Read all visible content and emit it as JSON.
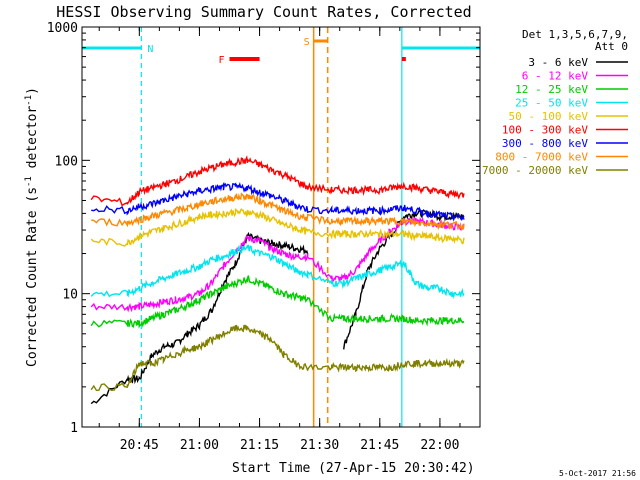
{
  "chart_data": {
    "type": "line",
    "title": "HESSI Observing Summary Count Rates, Corrected",
    "xlabel": "Start Time (27-Apr-15 20:30:42)",
    "ylabel": "Corrected Count Rate (s",
    "ylabel_sup1": "-1",
    "ylabel_mid": " detector",
    "ylabel_sup2": "-1",
    "ylabel_end": ")",
    "footer": "5-Oct-2017 21:56",
    "xlim": [
      "20:30:42",
      "22:10:00"
    ],
    "y_scale": "log",
    "ylim": [
      1,
      1000
    ],
    "x_ticks": [
      "20:45",
      "21:00",
      "21:15",
      "21:30",
      "21:45",
      "22:00"
    ],
    "y_ticks": [
      "1",
      "10",
      "100",
      "1000"
    ],
    "legend": {
      "placement": "right",
      "header1": "Det 1,3,5,6,7,9,",
      "header2": "Att 0",
      "entries": [
        {
          "label": "3 - 6 keV",
          "color": "#000000"
        },
        {
          "label": "6 - 12 keV",
          "color": "#ff00ff"
        },
        {
          "label": "12 - 25 keV",
          "color": "#00cc00"
        },
        {
          "label": "25 - 50 keV",
          "color": "#00e5ee"
        },
        {
          "label": "50 - 100 keV",
          "color": "#e6c200"
        },
        {
          "label": "100 - 300 keV",
          "color": "#ff0000"
        },
        {
          "label": "300 - 800 keV",
          "color": "#0000ff"
        },
        {
          "label": "800 - 7000 keV",
          "color": "#ff8800"
        },
        {
          "label": "7000 - 20000 keV",
          "color": "#808000"
        }
      ]
    },
    "flags": [
      {
        "label": "N",
        "color": "#00e5ee"
      },
      {
        "label": "F",
        "color": "#ff0000"
      },
      {
        "label": "S",
        "color": "#ff8800"
      }
    ],
    "night_intervals": [
      [
        "20:30:42",
        "20:45:30"
      ],
      [
        "21:50:30",
        "22:10:00"
      ]
    ],
    "saa_interval": [
      "21:28:30",
      "21:32:00"
    ],
    "flare_intervals": [
      [
        "21:07:30",
        "21:15:00"
      ],
      [
        "21:50:30",
        "21:51:30"
      ]
    ],
    "series": [
      {
        "name": "3 - 6 keV",
        "color": "#000000",
        "x": [
          "20:33",
          "20:42",
          "20:45",
          "20:48",
          "20:51",
          "20:54",
          "20:57",
          "21:00",
          "21:03",
          "21:06",
          "21:09",
          "21:12",
          "21:15",
          "21:18",
          "21:21",
          "21:24",
          "21:27",
          "21:33",
          "21:36",
          "21:39",
          "21:42",
          "21:45",
          "21:48",
          "21:51",
          "21:54",
          "21:57",
          "22:00",
          "22:03",
          "22:06"
        ],
        "y": [
          1.5,
          2.3,
          2.3,
          3.4,
          4.0,
          4.2,
          5.0,
          5.8,
          7.5,
          12,
          17,
          27,
          25,
          24,
          23,
          22,
          21,
          null,
          4.0,
          7.0,
          15,
          22,
          28,
          38,
          40,
          40,
          38,
          38,
          38
        ]
      },
      {
        "name": "6 - 12 keV",
        "color": "#ff00ff",
        "x": [
          "20:33",
          "20:42",
          "20:45",
          "20:48",
          "20:51",
          "20:54",
          "20:57",
          "21:00",
          "21:03",
          "21:06",
          "21:09",
          "21:12",
          "21:15",
          "21:18",
          "21:21",
          "21:24",
          "21:27",
          "21:33",
          "21:36",
          "21:39",
          "21:42",
          "21:45",
          "21:48",
          "21:51",
          "21:54",
          "21:57",
          "22:00",
          "22:03",
          "22:06"
        ],
        "y": [
          8.0,
          8.0,
          8.0,
          8.3,
          8.7,
          9.0,
          9.4,
          10,
          12,
          16,
          21,
          26,
          25,
          22,
          20,
          19,
          19,
          13,
          13,
          15,
          20,
          25,
          30,
          35,
          35,
          34,
          33,
          32,
          31
        ]
      },
      {
        "name": "12 - 25 keV",
        "color": "#00cc00",
        "x": [
          "20:33",
          "20:42",
          "20:45",
          "20:48",
          "20:51",
          "20:54",
          "20:57",
          "21:00",
          "21:03",
          "21:06",
          "21:09",
          "21:12",
          "21:15",
          "21:18",
          "21:21",
          "21:24",
          "21:27",
          "21:33",
          "21:36",
          "21:39",
          "21:42",
          "21:45",
          "21:48",
          "21:51",
          "21:54",
          "21:57",
          "22:00",
          "22:03",
          "22:06"
        ],
        "y": [
          6.0,
          6.0,
          6.0,
          6.5,
          7.0,
          7.5,
          8.2,
          9.0,
          10,
          11,
          12,
          13,
          12,
          11,
          10,
          9.5,
          9.0,
          6.5,
          6.5,
          6.5,
          6.5,
          6.5,
          6.5,
          6.5,
          6.3,
          6.3,
          6.3,
          6.3,
          6.3
        ]
      },
      {
        "name": "25 - 50 keV",
        "color": "#00e5ee",
        "x": [
          "20:33",
          "20:42",
          "20:45",
          "20:48",
          "20:51",
          "20:54",
          "20:57",
          "21:00",
          "21:03",
          "21:06",
          "21:09",
          "21:12",
          "21:15",
          "21:18",
          "21:21",
          "21:24",
          "21:27",
          "21:33",
          "21:36",
          "21:39",
          "21:42",
          "21:45",
          "21:48",
          "21:51",
          "21:54",
          "21:57",
          "22:00",
          "22:03",
          "22:06"
        ],
        "y": [
          10,
          10,
          11,
          12,
          13,
          14,
          15,
          16,
          18,
          19,
          21,
          22,
          20,
          19,
          17,
          15,
          14,
          12,
          12,
          13,
          14,
          15,
          16,
          17,
          12,
          11,
          11,
          10,
          10
        ]
      },
      {
        "name": "50 - 100 keV",
        "color": "#e6c200",
        "x": [
          "20:33",
          "20:42",
          "20:45",
          "20:48",
          "20:51",
          "20:54",
          "20:57",
          "21:00",
          "21:03",
          "21:06",
          "21:09",
          "21:12",
          "21:15",
          "21:18",
          "21:21",
          "21:24",
          "21:27",
          "21:33",
          "21:36",
          "21:39",
          "21:42",
          "21:45",
          "21:48",
          "21:51",
          "21:54",
          "21:57",
          "22:00",
          "22:03",
          "22:06"
        ],
        "y": [
          25,
          24,
          27,
          29,
          31,
          33,
          35,
          38,
          39,
          40,
          41,
          41,
          39,
          36,
          33,
          31,
          29,
          28,
          28,
          28,
          28,
          28,
          28,
          28,
          27,
          27,
          26,
          26,
          25
        ]
      },
      {
        "name": "100 - 300 keV",
        "color": "#ff0000",
        "x": [
          "20:33",
          "20:42",
          "20:45",
          "20:48",
          "20:51",
          "20:54",
          "20:57",
          "21:00",
          "21:03",
          "21:06",
          "21:09",
          "21:12",
          "21:15",
          "21:18",
          "21:21",
          "21:24",
          "21:27",
          "21:33",
          "21:36",
          "21:39",
          "21:42",
          "21:45",
          "21:48",
          "21:51",
          "21:54",
          "21:57",
          "22:00",
          "22:03",
          "22:06"
        ],
        "y": [
          52,
          48,
          58,
          62,
          66,
          70,
          76,
          82,
          88,
          93,
          97,
          100,
          93,
          85,
          78,
          70,
          63,
          60,
          60,
          60,
          60,
          60,
          62,
          65,
          62,
          60,
          58,
          56,
          55
        ]
      },
      {
        "name": "300 - 800 keV",
        "color": "#0000ff",
        "x": [
          "20:33",
          "20:42",
          "20:45",
          "20:48",
          "20:51",
          "20:54",
          "20:57",
          "21:00",
          "21:03",
          "21:06",
          "21:09",
          "21:12",
          "21:15",
          "21:18",
          "21:21",
          "21:24",
          "21:27",
          "21:33",
          "21:36",
          "21:39",
          "21:42",
          "21:45",
          "21:48",
          "21:51",
          "21:54",
          "21:57",
          "22:00",
          "22:03",
          "22:06"
        ],
        "y": [
          44,
          42,
          45,
          47,
          50,
          53,
          56,
          59,
          61,
          63,
          63,
          62,
          58,
          54,
          50,
          46,
          43,
          42,
          42,
          42,
          42,
          42,
          43,
          44,
          42,
          40,
          39,
          38,
          37
        ]
      },
      {
        "name": "800 - 7000 keV",
        "color": "#ff8800",
        "x": [
          "20:33",
          "20:42",
          "20:45",
          "20:48",
          "20:51",
          "20:54",
          "20:57",
          "21:00",
          "21:03",
          "21:06",
          "21:09",
          "21:12",
          "21:15",
          "21:18",
          "21:21",
          "21:24",
          "21:27",
          "21:33",
          "21:36",
          "21:39",
          "21:42",
          "21:45",
          "21:48",
          "21:51",
          "21:54",
          "21:57",
          "22:00",
          "22:03",
          "22:06"
        ],
        "y": [
          35,
          34,
          36,
          38,
          40,
          42,
          44,
          47,
          49,
          51,
          53,
          54,
          50,
          46,
          42,
          39,
          37,
          35,
          35,
          35,
          35,
          35,
          35,
          35,
          34,
          34,
          33,
          33,
          32
        ]
      },
      {
        "name": "7000 - 20000 keV",
        "color": "#808000",
        "x": [
          "20:33",
          "20:42",
          "20:45",
          "20:48",
          "20:51",
          "20:54",
          "20:57",
          "21:00",
          "21:03",
          "21:06",
          "21:09",
          "21:12",
          "21:15",
          "21:18",
          "21:21",
          "21:24",
          "21:27",
          "21:33",
          "21:36",
          "21:39",
          "21:42",
          "21:45",
          "21:48",
          "21:51",
          "21:54",
          "21:57",
          "22:00",
          "22:03",
          "22:06"
        ],
        "y": [
          2.0,
          2.0,
          3.0,
          3.0,
          3.2,
          3.5,
          3.8,
          4.0,
          4.5,
          5.0,
          5.5,
          5.5,
          5.0,
          4.5,
          3.5,
          3.0,
          2.8,
          2.8,
          2.8,
          2.8,
          2.8,
          2.8,
          2.8,
          3.0,
          3.0,
          3.0,
          3.0,
          3.0,
          3.0
        ]
      }
    ]
  }
}
